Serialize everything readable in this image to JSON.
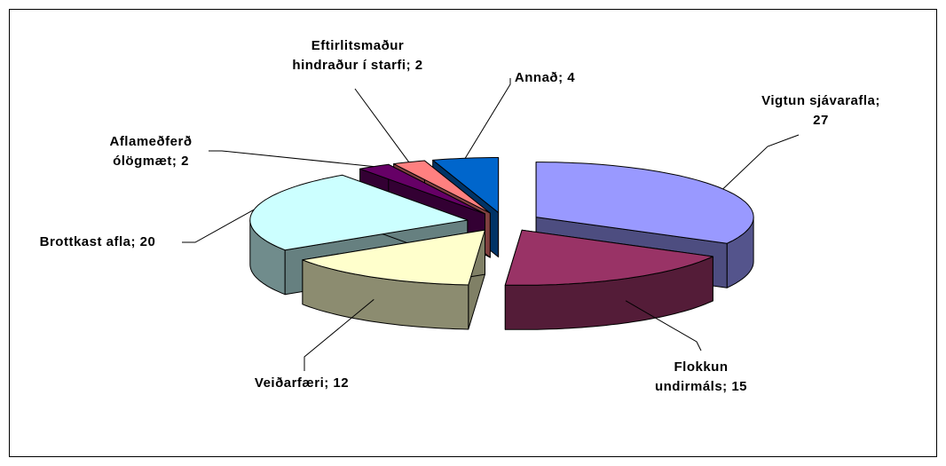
{
  "chart_data": {
    "type": "pie3d",
    "values": [
      27,
      15,
      12,
      20,
      2,
      2,
      4
    ],
    "value_labels": [
      [
        "Vigtun sjávarafla;",
        "27"
      ],
      [
        "Flokkun",
        "undirmáls; 15"
      ],
      [
        "Veiðarfæri; 12"
      ],
      [
        "Brottkast afla; 20"
      ],
      [
        "Aflameðferð",
        "ólögmæt; 2"
      ],
      [
        "Eftirlitsmaður",
        "hindraður í starfi; 2"
      ],
      [
        "Annað; 4"
      ]
    ],
    "colors": [
      "#9999ff",
      "#993366",
      "#ffffcc",
      "#ccffff",
      "#660066",
      "#ff8080",
      "#0066cc"
    ],
    "exploded": true
  }
}
